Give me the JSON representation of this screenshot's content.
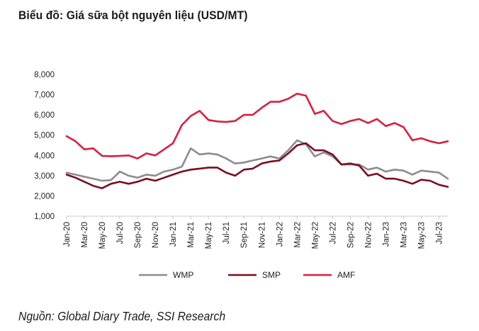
{
  "title": "Biểu đồ: Giá sữa bột nguyên liệu (USD/MT)",
  "source": "Nguồn: Global Diary Trade, SSI Research",
  "chart_data": {
    "type": "line",
    "title": "Biểu đồ: Giá sữa bột nguyên liệu (USD/MT)",
    "xlabel": "",
    "ylabel": "",
    "ylim": [
      1000,
      8000
    ],
    "yticks": [
      1000,
      2000,
      3000,
      4000,
      5000,
      6000,
      7000,
      8000
    ],
    "ytick_labels": [
      "1,000",
      "2,000",
      "3,000",
      "4,000",
      "5,000",
      "6,000",
      "7,000",
      "8,000"
    ],
    "x": [
      "Jan-20",
      "Feb-20",
      "Mar-20",
      "Apr-20",
      "May-20",
      "Jun-20",
      "Jul-20",
      "Aug-20",
      "Sep-20",
      "Oct-20",
      "Nov-20",
      "Dec-20",
      "Jan-21",
      "Feb-21",
      "Mar-21",
      "Apr-21",
      "May-21",
      "Jun-21",
      "Jul-21",
      "Aug-21",
      "Sep-21",
      "Oct-21",
      "Nov-21",
      "Dec-21",
      "Jan-22",
      "Feb-22",
      "Mar-22",
      "Apr-22",
      "May-22",
      "Jun-22",
      "Jul-22",
      "Aug-22",
      "Sep-22",
      "Oct-22",
      "Nov-22",
      "Dec-22",
      "Jan-23",
      "Feb-23",
      "Mar-23",
      "Apr-23",
      "May-23",
      "Jun-23",
      "Jul-23",
      "Aug-23"
    ],
    "xtick_labels": [
      "Jan-20",
      "Mar-20",
      "May-20",
      "Jul-20",
      "Sep-20",
      "Nov-20",
      "Jan-21",
      "Mar-21",
      "May-21",
      "Jul-21",
      "Sep-21",
      "Nov-21",
      "Jan-22",
      "Mar-22",
      "May-22",
      "Jul-22",
      "Sep-22",
      "Nov-22",
      "Jan-23",
      "Mar-23",
      "May-23",
      "Jul-23"
    ],
    "grid": false,
    "legend_position": "bottom",
    "series": [
      {
        "name": "WMP",
        "color": "#8c8c8c",
        "values": [
          3150,
          3050,
          2950,
          2850,
          2750,
          2780,
          3200,
          3000,
          2900,
          3050,
          3000,
          3200,
          3300,
          3450,
          4350,
          4050,
          4100,
          4050,
          3850,
          3600,
          3650,
          3750,
          3850,
          3950,
          3850,
          4250,
          4750,
          4550,
          3950,
          4150,
          3950,
          3550,
          3550,
          3550,
          3300,
          3400,
          3200,
          3300,
          3250,
          3050,
          3250,
          3200,
          3150,
          2850
        ]
      },
      {
        "name": "SMP",
        "color": "#7a0e1e",
        "values": [
          3050,
          2900,
          2700,
          2500,
          2380,
          2600,
          2700,
          2600,
          2700,
          2850,
          2750,
          2900,
          3050,
          3200,
          3300,
          3350,
          3400,
          3400,
          3150,
          3000,
          3300,
          3350,
          3600,
          3700,
          3750,
          4100,
          4500,
          4600,
          4250,
          4250,
          4050,
          3550,
          3600,
          3500,
          3000,
          3100,
          2850,
          2850,
          2750,
          2600,
          2800,
          2750,
          2550,
          2450
        ]
      },
      {
        "name": "AMF",
        "color": "#d81f3d",
        "values": [
          4950,
          4700,
          4300,
          4350,
          3980,
          3960,
          3980,
          4000,
          3850,
          4100,
          4000,
          4300,
          4600,
          5500,
          5950,
          6200,
          5750,
          5680,
          5650,
          5700,
          6000,
          6000,
          6350,
          6650,
          6650,
          6800,
          7050,
          6950,
          6050,
          6200,
          5700,
          5550,
          5700,
          5800,
          5600,
          5800,
          5450,
          5600,
          5400,
          4750,
          4850,
          4700,
          4600,
          4700
        ]
      }
    ]
  }
}
